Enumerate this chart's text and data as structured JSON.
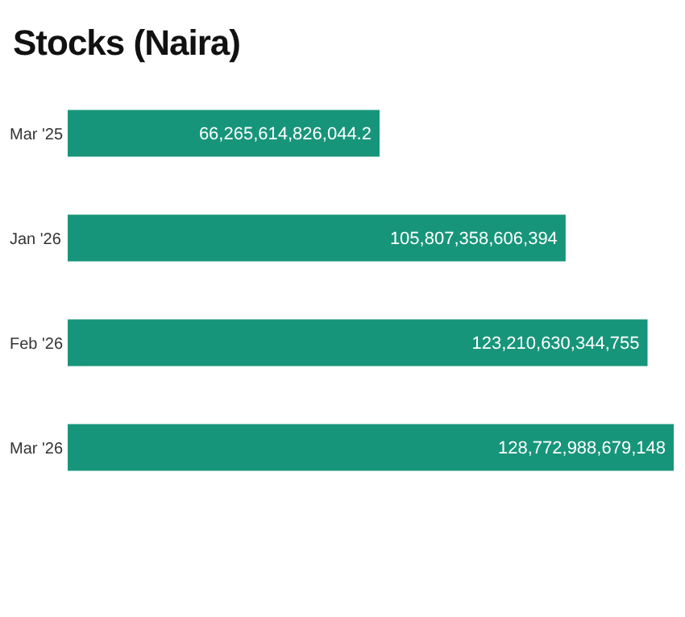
{
  "chart_data": {
    "type": "bar",
    "orientation": "horizontal",
    "title": "Stocks (Naira)",
    "categories": [
      "Mar '25",
      "Jan '26",
      "Feb '26",
      "Mar '26"
    ],
    "values": [
      66265614826044.2,
      105807358606394,
      123210630344755,
      128772988679148
    ],
    "color": "#17957a",
    "value_labels": [
      "66,265,614,826,044.2",
      "105,807,358,606,394",
      "123,210,630,344,755",
      "128,772,988,679,148"
    ]
  }
}
